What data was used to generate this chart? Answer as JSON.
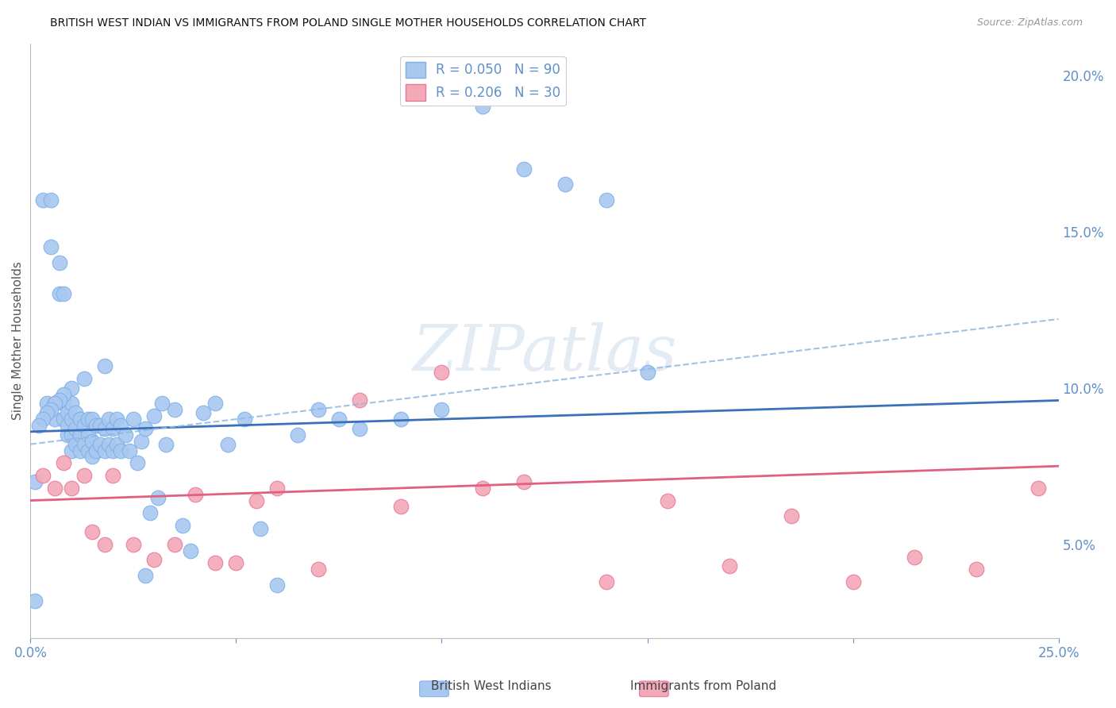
{
  "title": "BRITISH WEST INDIAN VS IMMIGRANTS FROM POLAND SINGLE MOTHER HOUSEHOLDS CORRELATION CHART",
  "source": "Source: ZipAtlas.com",
  "ylabel": "Single Mother Households",
  "xlim": [
    0.0,
    0.25
  ],
  "ylim": [
    0.02,
    0.21
  ],
  "yticks": [
    0.05,
    0.1,
    0.15,
    0.2
  ],
  "xticks": [
    0.0,
    0.05,
    0.1,
    0.15,
    0.2,
    0.25
  ],
  "xtick_labels": [
    "0.0%",
    "",
    "",
    "",
    "",
    "25.0%"
  ],
  "ytick_labels": [
    "5.0%",
    "10.0%",
    "15.0%",
    "20.0%"
  ],
  "blue_R": 0.05,
  "blue_N": 90,
  "pink_R": 0.206,
  "pink_N": 30,
  "blue_color": "#A8C8F0",
  "pink_color": "#F4A8B8",
  "blue_edge": "#7EB0E8",
  "pink_edge": "#E87898",
  "blue_line_color": "#3A70BA",
  "pink_line_color": "#E06080",
  "dashed_line_color": "#90B8E0",
  "axis_color": "#6090C8",
  "grid_color": "#D8D8D8",
  "background_color": "#FFFFFF",
  "blue_solid_line": [
    0.0,
    0.086,
    0.25,
    0.096
  ],
  "pink_solid_line": [
    0.0,
    0.064,
    0.25,
    0.075
  ],
  "dashed_line": [
    0.0,
    0.082,
    0.25,
    0.122
  ],
  "blue_x": [
    0.001,
    0.003,
    0.004,
    0.005,
    0.005,
    0.006,
    0.006,
    0.007,
    0.007,
    0.008,
    0.008,
    0.008,
    0.009,
    0.009,
    0.009,
    0.01,
    0.01,
    0.01,
    0.01,
    0.011,
    0.011,
    0.011,
    0.012,
    0.012,
    0.012,
    0.013,
    0.013,
    0.014,
    0.014,
    0.014,
    0.015,
    0.015,
    0.015,
    0.016,
    0.016,
    0.017,
    0.017,
    0.018,
    0.018,
    0.019,
    0.019,
    0.02,
    0.02,
    0.021,
    0.021,
    0.022,
    0.022,
    0.023,
    0.024,
    0.025,
    0.026,
    0.027,
    0.028,
    0.029,
    0.03,
    0.031,
    0.033,
    0.035,
    0.037,
    0.039,
    0.042,
    0.045,
    0.048,
    0.052,
    0.056,
    0.06,
    0.065,
    0.07,
    0.075,
    0.08,
    0.09,
    0.1,
    0.11,
    0.12,
    0.13,
    0.14,
    0.15,
    0.028,
    0.032,
    0.018,
    0.013,
    0.01,
    0.008,
    0.007,
    0.006,
    0.005,
    0.004,
    0.003,
    0.002,
    0.001
  ],
  "blue_y": [
    0.032,
    0.16,
    0.095,
    0.145,
    0.16,
    0.09,
    0.095,
    0.13,
    0.14,
    0.09,
    0.095,
    0.13,
    0.085,
    0.088,
    0.092,
    0.08,
    0.085,
    0.09,
    0.095,
    0.082,
    0.087,
    0.092,
    0.08,
    0.085,
    0.09,
    0.082,
    0.088,
    0.08,
    0.085,
    0.09,
    0.078,
    0.083,
    0.09,
    0.08,
    0.088,
    0.082,
    0.088,
    0.08,
    0.087,
    0.082,
    0.09,
    0.08,
    0.087,
    0.082,
    0.09,
    0.08,
    0.088,
    0.085,
    0.08,
    0.09,
    0.076,
    0.083,
    0.087,
    0.06,
    0.091,
    0.065,
    0.082,
    0.093,
    0.056,
    0.048,
    0.092,
    0.095,
    0.082,
    0.09,
    0.055,
    0.037,
    0.085,
    0.093,
    0.09,
    0.087,
    0.09,
    0.093,
    0.19,
    0.17,
    0.165,
    0.16,
    0.105,
    0.04,
    0.095,
    0.107,
    0.103,
    0.1,
    0.098,
    0.096,
    0.095,
    0.093,
    0.092,
    0.09,
    0.088,
    0.07
  ],
  "pink_x": [
    0.003,
    0.006,
    0.008,
    0.01,
    0.013,
    0.015,
    0.018,
    0.02,
    0.025,
    0.03,
    0.035,
    0.04,
    0.045,
    0.05,
    0.055,
    0.06,
    0.07,
    0.08,
    0.09,
    0.1,
    0.11,
    0.12,
    0.14,
    0.155,
    0.17,
    0.185,
    0.2,
    0.215,
    0.23,
    0.245
  ],
  "pink_y": [
    0.072,
    0.068,
    0.076,
    0.068,
    0.072,
    0.054,
    0.05,
    0.072,
    0.05,
    0.045,
    0.05,
    0.066,
    0.044,
    0.044,
    0.064,
    0.068,
    0.042,
    0.096,
    0.062,
    0.105,
    0.068,
    0.07,
    0.038,
    0.064,
    0.043,
    0.059,
    0.038,
    0.046,
    0.042,
    0.068
  ],
  "watermark": "ZIPatlas"
}
